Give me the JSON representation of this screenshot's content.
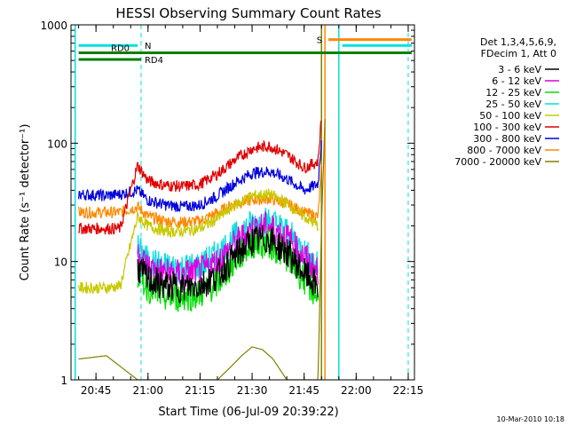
{
  "chart_data": {
    "type": "line",
    "title": "HESSI Observing Summary Count Rates",
    "xlabel": "Start Time (06-Jul-09 20:39:22)",
    "ylabel": "Count Rate (s⁻¹ detector⁻¹)",
    "yscale": "log",
    "ylim": [
      1,
      1000
    ],
    "xlim_minutes": [
      20.63,
      22.28
    ],
    "x_ticks": [
      "20:45",
      "21:00",
      "21:15",
      "21:30",
      "21:45",
      "22:00",
      "22:15"
    ],
    "y_ticks": [
      "1",
      "10",
      "100",
      "1000"
    ],
    "legend_position": "right",
    "legend_header": [
      "Det 1,3,4,5,6,9,",
      "FDecim 1, Att 0"
    ],
    "series": [
      {
        "name": "3 - 6 keV",
        "color": "#000000",
        "x": [
          "20:57",
          "21:00",
          "21:05",
          "21:10",
          "21:15",
          "21:20",
          "21:25",
          "21:30",
          "21:35",
          "21:40",
          "21:45",
          "21:49"
        ],
        "values": [
          9,
          7,
          6.2,
          6.0,
          6.3,
          7.6,
          11,
          15,
          15.5,
          12,
          8,
          6
        ]
      },
      {
        "name": "6 - 12 keV",
        "color": "#dd00dd",
        "x": [
          "20:57",
          "21:00",
          "21:05",
          "21:10",
          "21:15",
          "21:20",
          "21:25",
          "21:30",
          "21:35",
          "21:40",
          "21:45",
          "21:49"
        ],
        "values": [
          12,
          9,
          8,
          7.8,
          8.2,
          10,
          14,
          19,
          20,
          16,
          11,
          8
        ]
      },
      {
        "name": "12 - 25 keV",
        "color": "#00dd00",
        "x": [
          "20:57",
          "21:00",
          "21:05",
          "21:10",
          "21:15",
          "21:20",
          "21:25",
          "21:30",
          "21:35",
          "21:40",
          "21:45",
          "21:49"
        ],
        "values": [
          8,
          6,
          5,
          5,
          5.3,
          6.5,
          10,
          14,
          14,
          11,
          7,
          5
        ]
      },
      {
        "name": "25 - 50 keV",
        "color": "#00e0e0",
        "x": [
          "20:57",
          "21:00",
          "21:05",
          "21:10",
          "21:15",
          "21:20",
          "21:25",
          "21:30",
          "21:35",
          "21:40",
          "21:45",
          "21:49"
        ],
        "values": [
          13,
          10,
          9,
          8.8,
          9.2,
          11.5,
          16,
          21,
          22,
          18,
          12,
          9
        ]
      },
      {
        "name": "50 - 100 keV",
        "color": "#c8c800",
        "x": [
          "20:40",
          "20:48",
          "20:52",
          "20:57",
          "21:00",
          "21:05",
          "21:10",
          "21:15",
          "21:20",
          "21:25",
          "21:30",
          "21:35",
          "21:40",
          "21:45",
          "21:49"
        ],
        "values": [
          6,
          6,
          6.2,
          24,
          20,
          18,
          18,
          19,
          23,
          30,
          36,
          37,
          31,
          24,
          20
        ]
      },
      {
        "name": "100 - 300 keV",
        "color": "#e00000",
        "x": [
          "20:40",
          "20:48",
          "20:52",
          "20:57",
          "21:00",
          "21:05",
          "21:10",
          "21:15",
          "21:20",
          "21:25",
          "21:30",
          "21:35",
          "21:40",
          "21:45",
          "21:49",
          "21:50"
        ],
        "values": [
          19,
          19,
          19,
          65,
          48,
          44,
          43,
          45,
          55,
          72,
          90,
          95,
          80,
          62,
          70,
          170
        ]
      },
      {
        "name": "300 - 800 keV",
        "color": "#0000dd",
        "x": [
          "20:40",
          "20:48",
          "20:52",
          "20:57",
          "21:00",
          "21:05",
          "21:10",
          "21:15",
          "21:20",
          "21:25",
          "21:30",
          "21:35",
          "21:40",
          "21:45",
          "21:49",
          "21:50"
        ],
        "values": [
          37,
          36,
          37,
          40,
          33,
          30,
          29,
          30,
          36,
          46,
          56,
          58,
          50,
          40,
          45,
          110
        ]
      },
      {
        "name": "800 - 7000 keV",
        "color": "#ff8800",
        "x": [
          "20:40",
          "20:48",
          "20:52",
          "20:57",
          "21:00",
          "21:05",
          "21:10",
          "21:15",
          "21:20",
          "21:25",
          "21:30",
          "21:35",
          "21:40",
          "21:45",
          "21:49",
          "21:50"
        ],
        "values": [
          26,
          26,
          26,
          29,
          24,
          22,
          21.5,
          22,
          26,
          31,
          33,
          34,
          31,
          26,
          24,
          60
        ]
      },
      {
        "name": "7000 - 20000 keV",
        "color": "#808000",
        "x": [
          "20:40",
          "20:48",
          "20:57",
          "21:20",
          "21:24",
          "21:27",
          "21:30",
          "21:33",
          "21:36",
          "21:40",
          "21:49",
          "21:50",
          "21:51"
        ],
        "values": [
          1.5,
          1.6,
          1.0,
          1.0,
          1.3,
          1.6,
          1.9,
          1.8,
          1.5,
          1.0,
          1.0,
          20,
          160
        ]
      }
    ],
    "annotations": [
      {
        "text": "N",
        "color": "#00e0e0"
      },
      {
        "text": "S",
        "color": "#ff8800"
      },
      {
        "text": "RD0",
        "color": "#008000"
      },
      {
        "text": "RD4",
        "color": "#008000"
      }
    ],
    "flag_bars": [
      {
        "label": "N",
        "color": "#00e0e0",
        "x_start": "20:40",
        "x_end": "20:57",
        "value": 670
      },
      {
        "label": "RD0",
        "color": "#008000",
        "x_start": "20:40",
        "x_end": "22:16",
        "value": 580
      },
      {
        "label": "RD4",
        "color": "#008000",
        "x_start": "20:40",
        "x_end": "20:58",
        "value": 510
      },
      {
        "label": "S",
        "color": "#ff8800",
        "x_start": "21:52",
        "x_end": "22:16",
        "value": 750
      },
      {
        "label": "",
        "color": "#00e0e0",
        "x_start": "21:56",
        "x_end": "22:16",
        "value": 670
      }
    ],
    "vertical_markers": [
      {
        "x": "20:39",
        "color": "#00e0e0",
        "style": "solid"
      },
      {
        "x": "20:58",
        "color": "#00e0e0",
        "style": "dashed"
      },
      {
        "x": "21:50",
        "color": "#808000",
        "style": "solid"
      },
      {
        "x": "21:51",
        "color": "#ff8800",
        "style": "solid"
      },
      {
        "x": "21:55",
        "color": "#00e0e0",
        "style": "solid"
      },
      {
        "x": "22:15",
        "color": "#00e0e0",
        "style": "dashed"
      }
    ]
  },
  "footer": {
    "date_stamp": "10-Mar-2010 10:18"
  }
}
